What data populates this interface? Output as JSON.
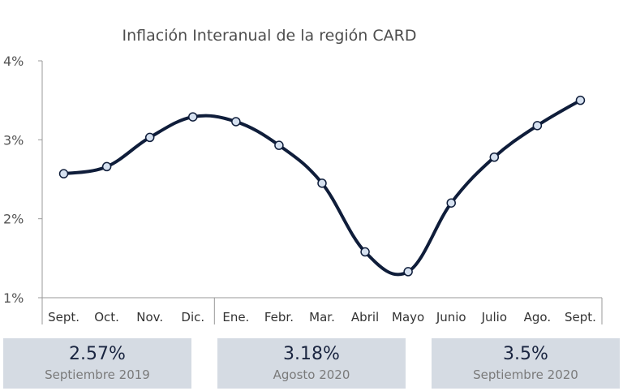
{
  "chart_data": {
    "type": "line",
    "title": "Inflación Interanual de la región CARD",
    "categories": [
      "Sept.",
      "Oct.",
      "Nov.",
      "Dic.",
      "Ene.",
      "Febr.",
      "Mar.",
      "Abril",
      "Mayo",
      "Junio",
      "Julio",
      "Ago.",
      "Sept."
    ],
    "values": [
      2.57,
      2.66,
      3.03,
      3.29,
      3.23,
      2.93,
      2.45,
      1.58,
      1.33,
      2.2,
      2.78,
      3.18,
      3.5
    ],
    "y_unit": "%",
    "ylim": [
      1,
      4
    ],
    "yticks": [
      "1%",
      "2%",
      "3%",
      "4%"
    ],
    "grid": false,
    "line_color": "#0f1d3a",
    "marker_fill": "#d6e1f0"
  },
  "summary_cards": [
    {
      "value": "2.57%",
      "label": "Septiembre 2019"
    },
    {
      "value": "3.18%",
      "label": "Agosto 2020"
    },
    {
      "value": "3.5%",
      "label": "Septiembre 2020"
    }
  ]
}
